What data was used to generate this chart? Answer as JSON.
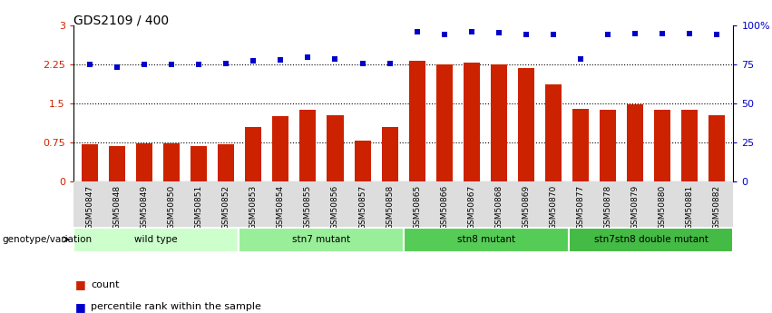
{
  "title": "GDS2109 / 400",
  "samples": [
    "GSM50847",
    "GSM50848",
    "GSM50849",
    "GSM50850",
    "GSM50851",
    "GSM50852",
    "GSM50853",
    "GSM50854",
    "GSM50855",
    "GSM50856",
    "GSM50857",
    "GSM50858",
    "GSM50865",
    "GSM50866",
    "GSM50867",
    "GSM50868",
    "GSM50869",
    "GSM50870",
    "GSM50877",
    "GSM50878",
    "GSM50879",
    "GSM50880",
    "GSM50881",
    "GSM50882"
  ],
  "count_values": [
    0.72,
    0.68,
    0.74,
    0.73,
    0.68,
    0.72,
    1.05,
    1.25,
    1.38,
    1.28,
    0.78,
    1.05,
    2.32,
    2.25,
    2.28,
    2.25,
    2.18,
    1.87,
    1.4,
    1.38,
    1.48,
    1.38,
    1.38,
    1.28
  ],
  "percentile_values": [
    75,
    73,
    75,
    75,
    75,
    75.3,
    77.3,
    77.7,
    79.3,
    78.3,
    75.3,
    75.7,
    96,
    94,
    95.7,
    95,
    94,
    94,
    78.3,
    94,
    94.7,
    94.3,
    94.3,
    94
  ],
  "bar_color": "#cc2200",
  "dot_color": "#0000cc",
  "groups": [
    {
      "label": "wild type",
      "start": 0,
      "end": 6,
      "color": "#ccffcc"
    },
    {
      "label": "stn7 mutant",
      "start": 6,
      "end": 12,
      "color": "#99ee99"
    },
    {
      "label": "stn8 mutant",
      "start": 12,
      "end": 18,
      "color": "#55cc55"
    },
    {
      "label": "stn7stn8 double mutant",
      "start": 18,
      "end": 24,
      "color": "#44bb44"
    }
  ],
  "ylim_left": [
    0,
    3
  ],
  "ylim_right": [
    0,
    100
  ],
  "yticks_left": [
    0,
    0.75,
    1.5,
    2.25,
    3.0
  ],
  "ytick_labels_left": [
    "0",
    "0.75",
    "1.5",
    "2.25",
    "3"
  ],
  "yticks_right": [
    0,
    25,
    50,
    75,
    100
  ],
  "ytick_labels_right": [
    "0",
    "25",
    "50",
    "75",
    "100%"
  ],
  "hlines": [
    0.75,
    1.5,
    2.25
  ],
  "bg_color": "#ffffff",
  "tick_color_left": "#cc2200",
  "tick_color_right": "#0000cc",
  "legend_count_label": "count",
  "legend_pct_label": "percentile rank within the sample",
  "genotype_label": "genotype/variation",
  "title_fontsize": 10,
  "axis_fontsize": 8,
  "bar_width": 0.6
}
